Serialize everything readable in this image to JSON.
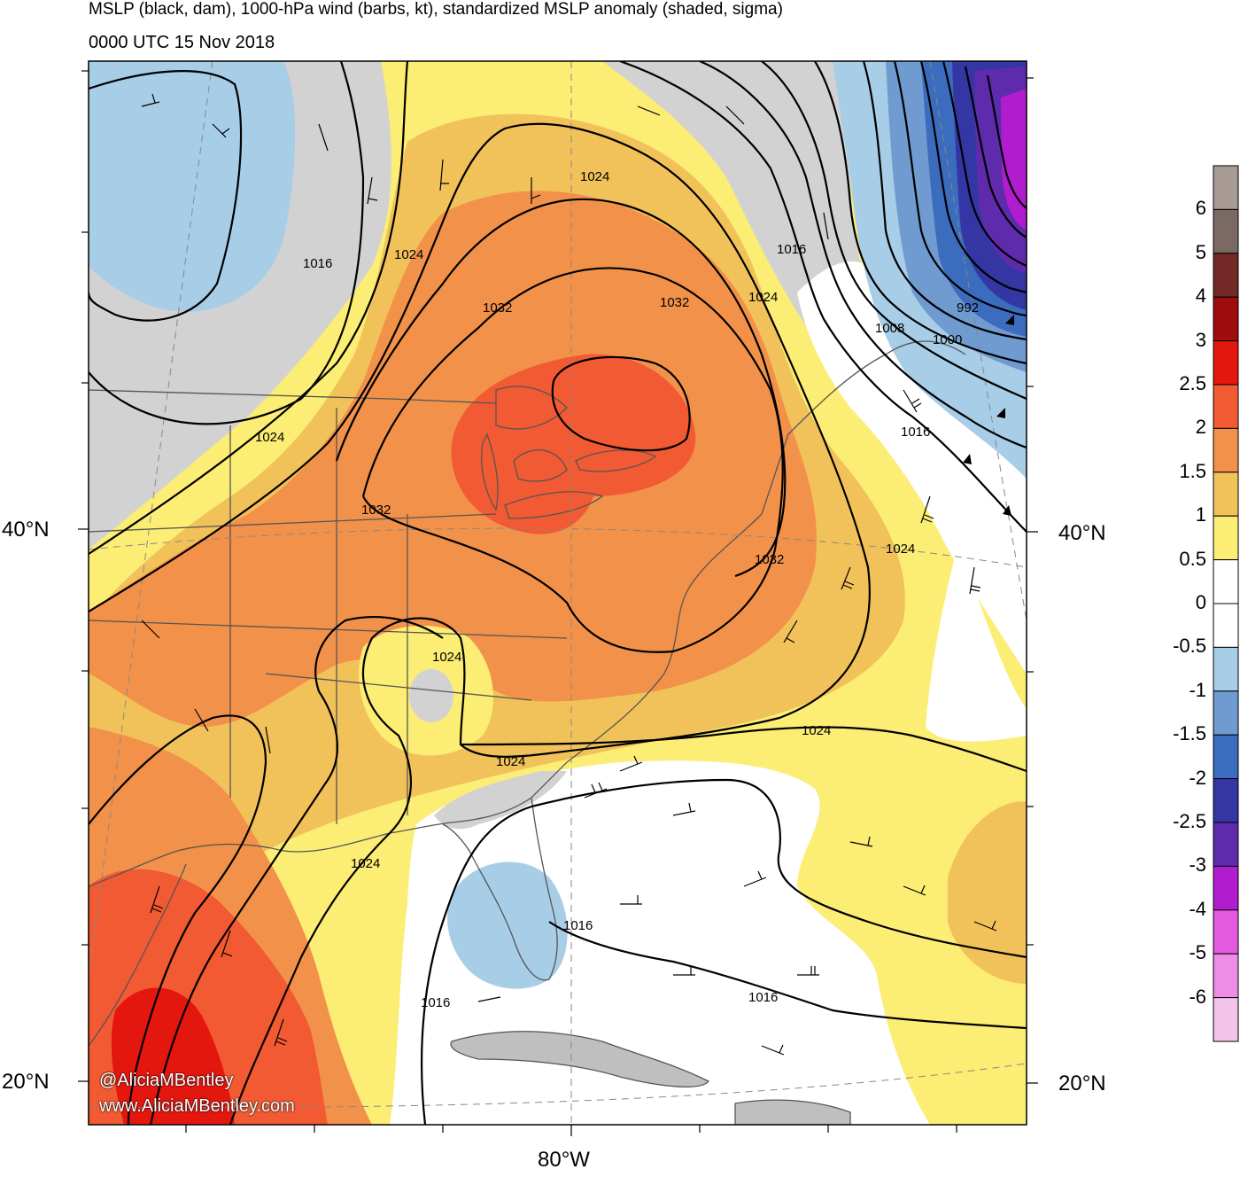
{
  "title": {
    "line1": "MSLP (black, dam), 1000-hPa wind (barbs, kt), standardized MSLP anomaly (shaded, sigma)",
    "line2": "0000 UTC 15 Nov 2018"
  },
  "axes": {
    "lat_labels": [
      "40°N",
      "20°N"
    ],
    "lon_labels": [
      "80°W"
    ]
  },
  "contour_labels": [
    "1024",
    "1016",
    "1024",
    "1024",
    "1032",
    "1032",
    "1024",
    "1016",
    "1008",
    "1000",
    "992",
    "1016",
    "1032",
    "1032",
    "1024",
    "1024",
    "1024",
    "1024",
    "1024",
    "1016",
    "1016",
    "1016"
  ],
  "credit": {
    "handle": "@AliciaMBentley",
    "url": "www.AliciaMBentley.com"
  },
  "colorbar": {
    "labels": [
      "6",
      "5",
      "4",
      "3",
      "2.5",
      "2",
      "1.5",
      "1",
      "0.5",
      "0",
      "-0.5",
      "-1",
      "-1.5",
      "-2",
      "-2.5",
      "-3",
      "-4",
      "-5",
      "-6"
    ],
    "colors": [
      "#a89b96",
      "#7a6a63",
      "#732a27",
      "#a00d0d",
      "#e4170f",
      "#f15a32",
      "#f2914a",
      "#f2c25a",
      "#fced74",
      "#ffffff",
      "#ffffff",
      "#a8cde6",
      "#6f9bd1",
      "#3b6cbe",
      "#3436a3",
      "#5e2bad",
      "#b21ccf",
      "#e65ae0",
      "#ee8ce6",
      "#f2c4ec"
    ]
  },
  "colors": {
    "land_outline": "#555555",
    "contour": "#000000",
    "gray_fill": "#d2d2d2"
  }
}
